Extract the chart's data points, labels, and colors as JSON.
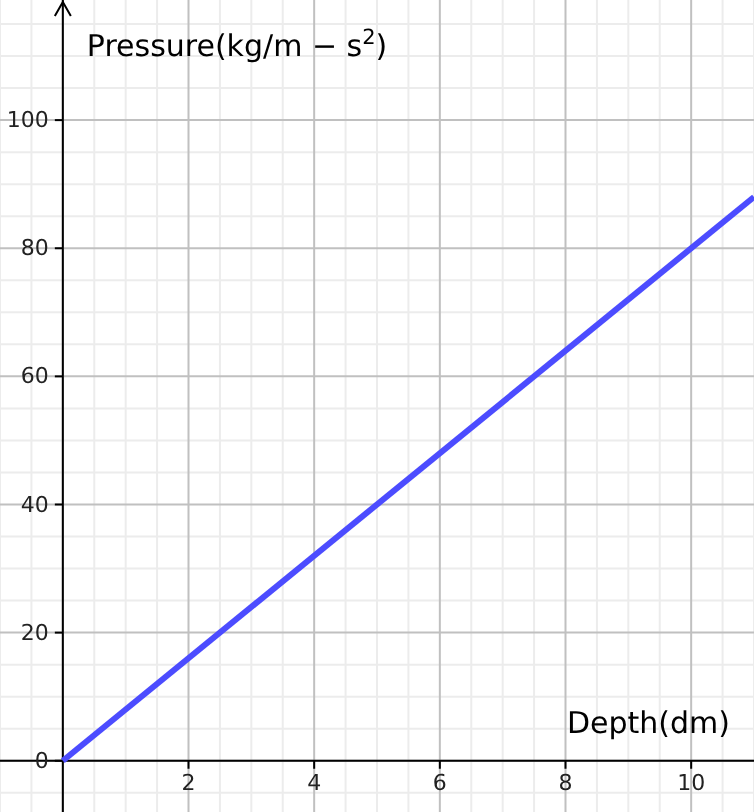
{
  "chart_data": {
    "type": "line",
    "xlabel": "Depth(dm)",
    "ylabel": "Pressure(kg/m − s$^{2}$)",
    "x": [
      0,
      11
    ],
    "series": [
      {
        "color": "#4c4cff",
        "values": [
          0,
          88
        ]
      }
    ],
    "xlim": [
      -1,
      11
    ],
    "ylim": [
      -8,
      118.75
    ],
    "xticks": [
      2,
      4,
      6,
      8,
      10
    ],
    "yticks": [
      0,
      20,
      40,
      60,
      80,
      100
    ],
    "grid": true,
    "line_style": "solid",
    "marker": "none"
  }
}
